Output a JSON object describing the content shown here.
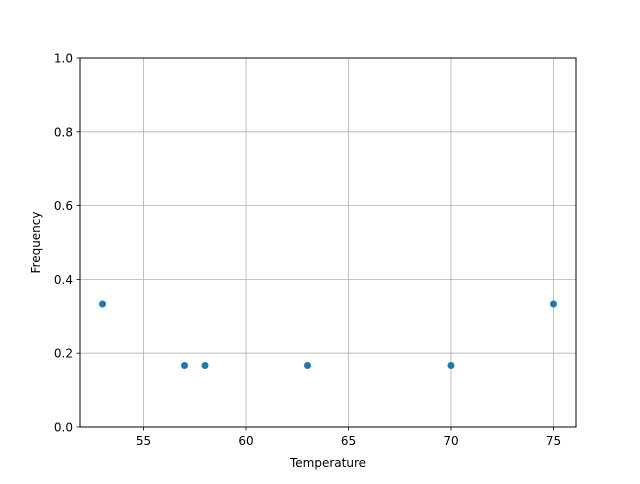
{
  "chart_data": {
    "type": "scatter",
    "title": "",
    "xlabel": "Temperature",
    "ylabel": "Frequency",
    "xlim": [
      51.9,
      76.1
    ],
    "ylim": [
      0,
      1.0
    ],
    "xticks": [
      55,
      60,
      65,
      70,
      75
    ],
    "xtick_labels": [
      "55",
      "60",
      "65",
      "70",
      "75"
    ],
    "yticks": [
      0,
      0.2,
      0.4,
      0.6,
      0.8,
      1.0
    ],
    "ytick_labels": [
      "0.0",
      "0.2",
      "0.4",
      "0.6",
      "0.8",
      "1.0"
    ],
    "grid": true,
    "color": "#1f77b4",
    "points": [
      {
        "x": 53,
        "y": 0.3333
      },
      {
        "x": 57,
        "y": 0.1667
      },
      {
        "x": 58,
        "y": 0.1667
      },
      {
        "x": 63,
        "y": 0.1667
      },
      {
        "x": 70,
        "y": 0.1667
      },
      {
        "x": 75,
        "y": 0.3333
      }
    ]
  }
}
